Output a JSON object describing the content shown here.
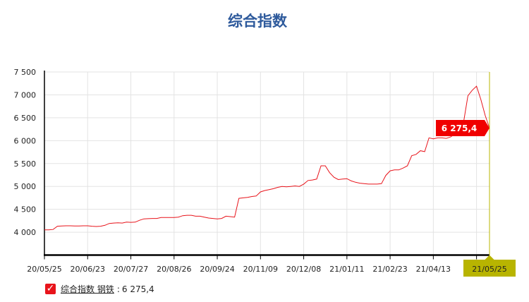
{
  "title": "综合指数",
  "chart_data": {
    "type": "line",
    "title": "综合指数",
    "ylim": [
      3500,
      7500
    ],
    "yticks": [
      4000,
      4500,
      5000,
      5500,
      6000,
      6500,
      7000,
      7500
    ],
    "ytick_labels": [
      "4 000",
      "4 500",
      "5 000",
      "5 500",
      "6 000",
      "6 500",
      "7 000",
      "7 500"
    ],
    "grid": true,
    "xtick_labels": [
      {
        "index": 0,
        "label": "20/05/25"
      },
      {
        "index": 10,
        "label": "20/06/23"
      },
      {
        "index": 20,
        "label": "20/07/27"
      },
      {
        "index": 30,
        "label": "20/08/26"
      },
      {
        "index": 40,
        "label": "20/09/24"
      },
      {
        "index": 50,
        "label": "20/11/09"
      },
      {
        "index": 60,
        "label": "20/12/08"
      },
      {
        "index": 70,
        "label": "21/01/11"
      },
      {
        "index": 80,
        "label": "21/02/23"
      },
      {
        "index": 90,
        "label": "21/04/13"
      },
      {
        "index": 100,
        "label": ""
      }
    ],
    "series": [
      {
        "name": "综合指数 钢铁",
        "color": "#e8141b",
        "values": [
          4050,
          4050,
          4060,
          4130,
          4135,
          4140,
          4140,
          4135,
          4135,
          4140,
          4140,
          4130,
          4125,
          4130,
          4150,
          4190,
          4200,
          4205,
          4200,
          4220,
          4215,
          4220,
          4260,
          4290,
          4295,
          4300,
          4300,
          4320,
          4320,
          4320,
          4320,
          4330,
          4360,
          4370,
          4370,
          4350,
          4350,
          4330,
          4310,
          4300,
          4290,
          4300,
          4350,
          4340,
          4330,
          4740,
          4750,
          4760,
          4780,
          4790,
          4880,
          4910,
          4930,
          4950,
          4980,
          5000,
          4990,
          5000,
          5010,
          5000,
          5050,
          5130,
          5140,
          5160,
          5450,
          5450,
          5300,
          5200,
          5150,
          5160,
          5170,
          5120,
          5090,
          5070,
          5060,
          5050,
          5050,
          5050,
          5060,
          5240,
          5340,
          5360,
          5360,
          5400,
          5450,
          5670,
          5700,
          5780,
          5760,
          6060,
          6040,
          6060,
          6060,
          6050,
          6080,
          6150,
          6250,
          6400,
          6980,
          7100,
          7190,
          6900,
          6550,
          6275
        ]
      }
    ],
    "crosshair": {
      "date": "21/05/25",
      "value_label": "6 275,4",
      "color": "#b8b400"
    },
    "legend": {
      "position": "bottom-left",
      "label": "综合指数 钢铁",
      "value": "6 275,4",
      "separator": ":"
    }
  }
}
